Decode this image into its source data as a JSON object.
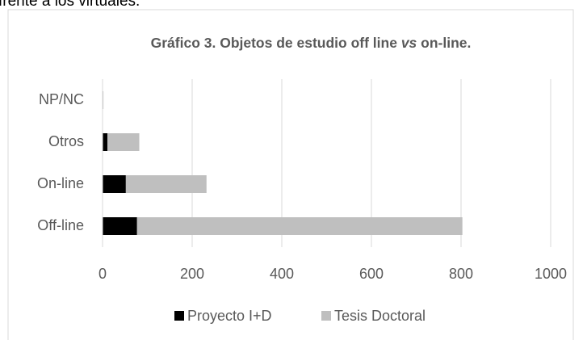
{
  "above_text": "frente a los virtuales.",
  "chart_data": {
    "type": "stacked-bar-horizontal",
    "title": [
      "Gráfico 3. Objetos de estudio off line ",
      "vs",
      " on-line."
    ],
    "categories": [
      "Off-line",
      "On-line",
      "Otros",
      "NP/NC"
    ],
    "series": [
      {
        "name": "Proyecto I+D",
        "color": "#000000",
        "values": [
          77,
          52,
          11,
          0
        ]
      },
      {
        "name": "Tesis Doctoral",
        "color": "#bfbfbf",
        "values": [
          726,
          180,
          71,
          2
        ]
      }
    ],
    "xlim": [
      0,
      1000
    ],
    "xticks": [
      0,
      200,
      400,
      600,
      800,
      1000
    ],
    "grid": true,
    "legend": "bottom"
  }
}
